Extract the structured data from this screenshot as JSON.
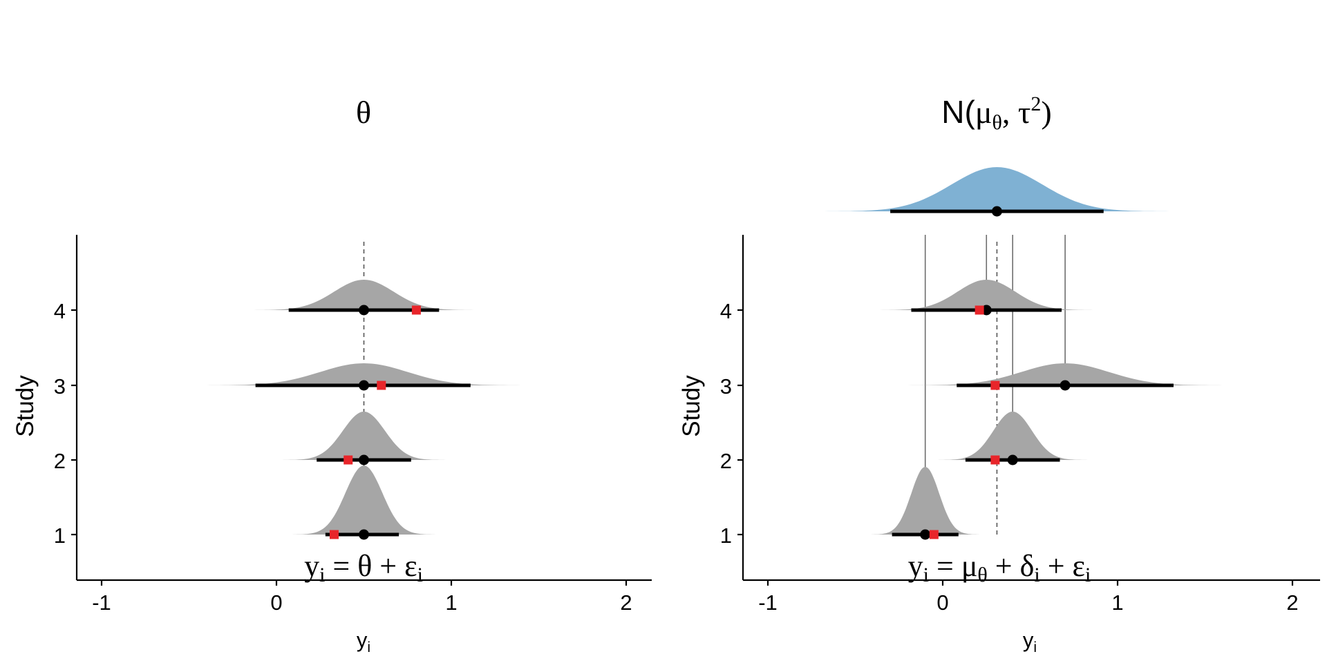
{
  "chart_data": [
    {
      "type": "density-interval",
      "title": "θ",
      "formula": "y_i = θ + ε_i",
      "xlabel": "y",
      "xlabel_sub": "i",
      "ylabel": "Study",
      "xlim": [
        -1.15,
        2.15
      ],
      "x_ticks": [
        -1,
        0,
        1,
        2
      ],
      "x_tick_labels": [
        "-1",
        "0",
        "1",
        "2"
      ],
      "y_ticks": [
        1,
        2,
        3,
        4
      ],
      "y_tick_labels": [
        "1",
        "2",
        "3",
        "4"
      ],
      "grid": false,
      "reference_line": 0.5,
      "density_color": "#a6a6a6",
      "observed_color": "#e8252a",
      "studies": [
        {
          "study": 1,
          "mean": 0.5,
          "sd": 0.105,
          "ci": [
            0.28,
            0.7
          ],
          "observed": 0.33
        },
        {
          "study": 2,
          "mean": 0.5,
          "sd": 0.12,
          "ci": [
            0.23,
            0.77
          ],
          "observed": 0.41
        },
        {
          "study": 3,
          "mean": 0.5,
          "sd": 0.25,
          "ci": [
            -0.12,
            1.11
          ],
          "observed": 0.6
        },
        {
          "study": 4,
          "mean": 0.5,
          "sd": 0.17,
          "ci": [
            0.07,
            0.93
          ],
          "observed": 0.8
        }
      ]
    },
    {
      "type": "density-interval",
      "title": "N(μθ, τ2)",
      "title_parts": {
        "a": "N(",
        "mu": "μ",
        "mu_sub": "θ",
        "mid": ", τ",
        "sup": "2",
        "end": ")"
      },
      "formula": "y_i = μ_θ + δ_i + ε_i",
      "xlabel": "y",
      "xlabel_sub": "i",
      "ylabel": "Study",
      "xlim": [
        -1.15,
        2.15
      ],
      "x_ticks": [
        -1,
        0,
        1,
        2
      ],
      "x_tick_labels": [
        "-1",
        "0",
        "1",
        "2"
      ],
      "y_ticks": [
        1,
        2,
        3,
        4
      ],
      "y_tick_labels": [
        "1",
        "2",
        "3",
        "4"
      ],
      "grid": false,
      "reference_line": 0.31,
      "density_color": "#a6a6a6",
      "observed_color": "#e8252a",
      "population": {
        "mean": 0.31,
        "sd": 0.26,
        "ci": [
          -0.3,
          0.92
        ],
        "color": "#7fb1d3"
      },
      "studies": [
        {
          "study": 1,
          "mean": -0.1,
          "sd": 0.08,
          "ci": [
            -0.29,
            0.09
          ],
          "observed": -0.05
        },
        {
          "study": 2,
          "mean": 0.4,
          "sd": 0.11,
          "ci": [
            0.13,
            0.67
          ],
          "observed": 0.3
        },
        {
          "study": 3,
          "mean": 0.7,
          "sd": 0.25,
          "ci": [
            0.08,
            1.32
          ],
          "observed": 0.3
        },
        {
          "study": 4,
          "mean": 0.25,
          "sd": 0.165,
          "ci": [
            -0.18,
            0.68
          ],
          "observed": 0.21
        }
      ]
    }
  ]
}
